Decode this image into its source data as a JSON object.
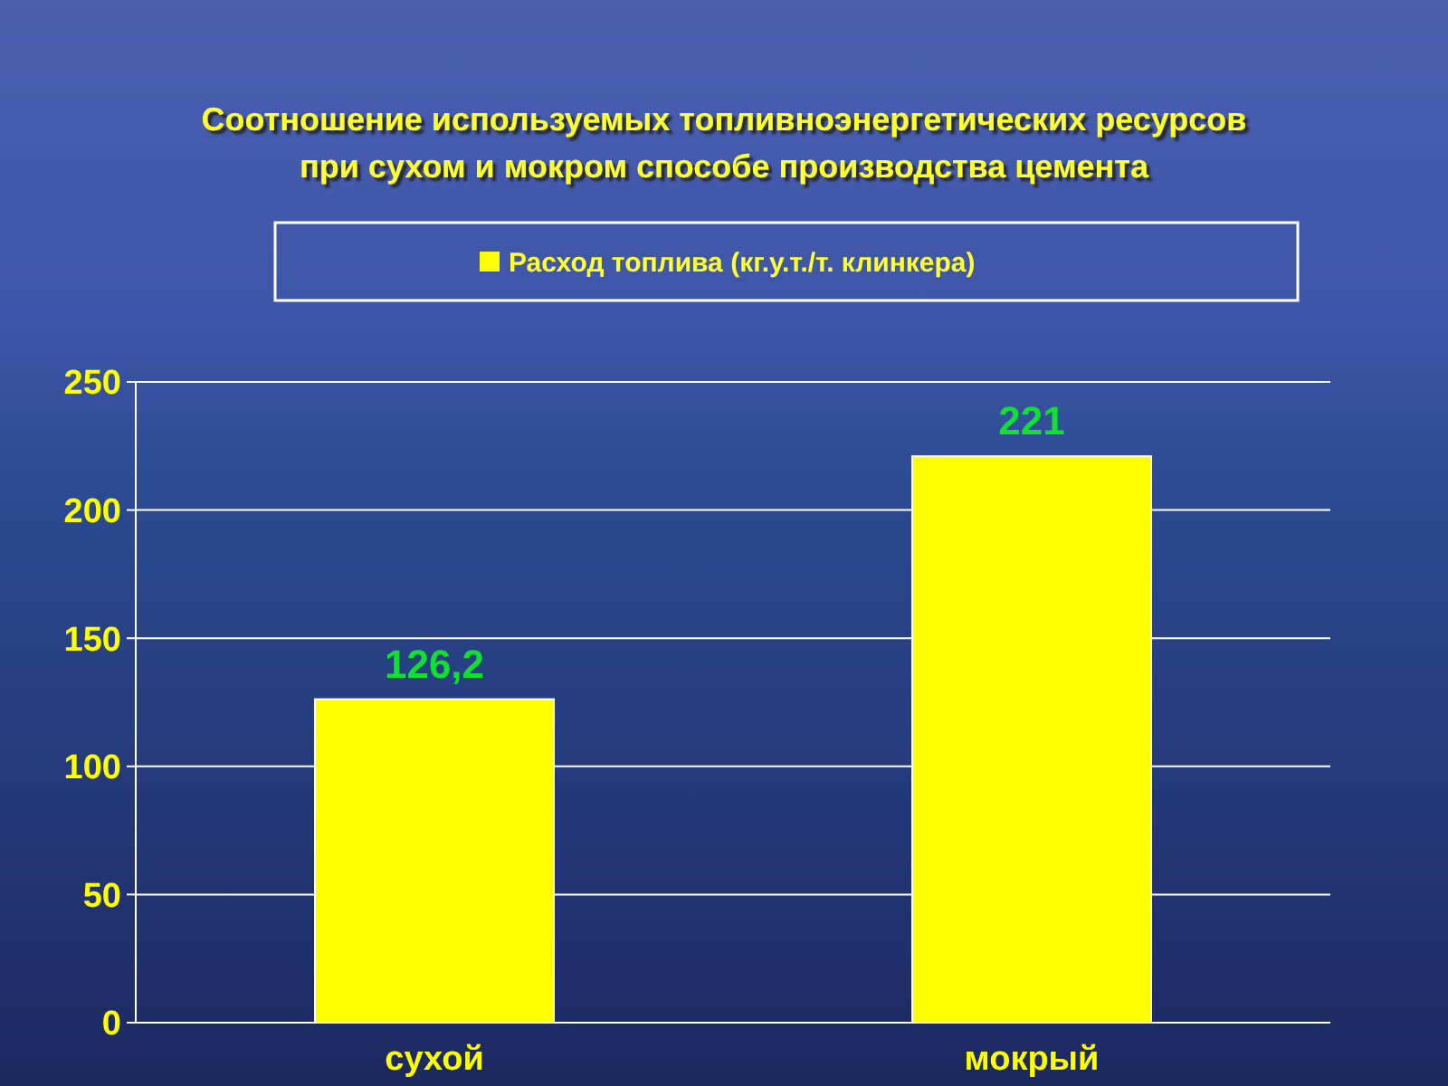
{
  "chart_data": {
    "type": "bar",
    "title": "Соотношение используемых топливноэнергетических ресурсов\nпри сухом и мокром способе производства цемента",
    "categories": [
      "сухой",
      "мокрый"
    ],
    "series": [
      {
        "name": "Расход топлива (кг.у.т./т. клинкера)",
        "color": "#ffff00",
        "values": [
          126.2,
          221
        ],
        "value_labels": [
          "126,2",
          "221"
        ]
      }
    ],
    "ylim": [
      0,
      250
    ],
    "yticks": [
      0,
      50,
      100,
      150,
      200,
      250
    ],
    "grid": "y",
    "legend": "top"
  }
}
